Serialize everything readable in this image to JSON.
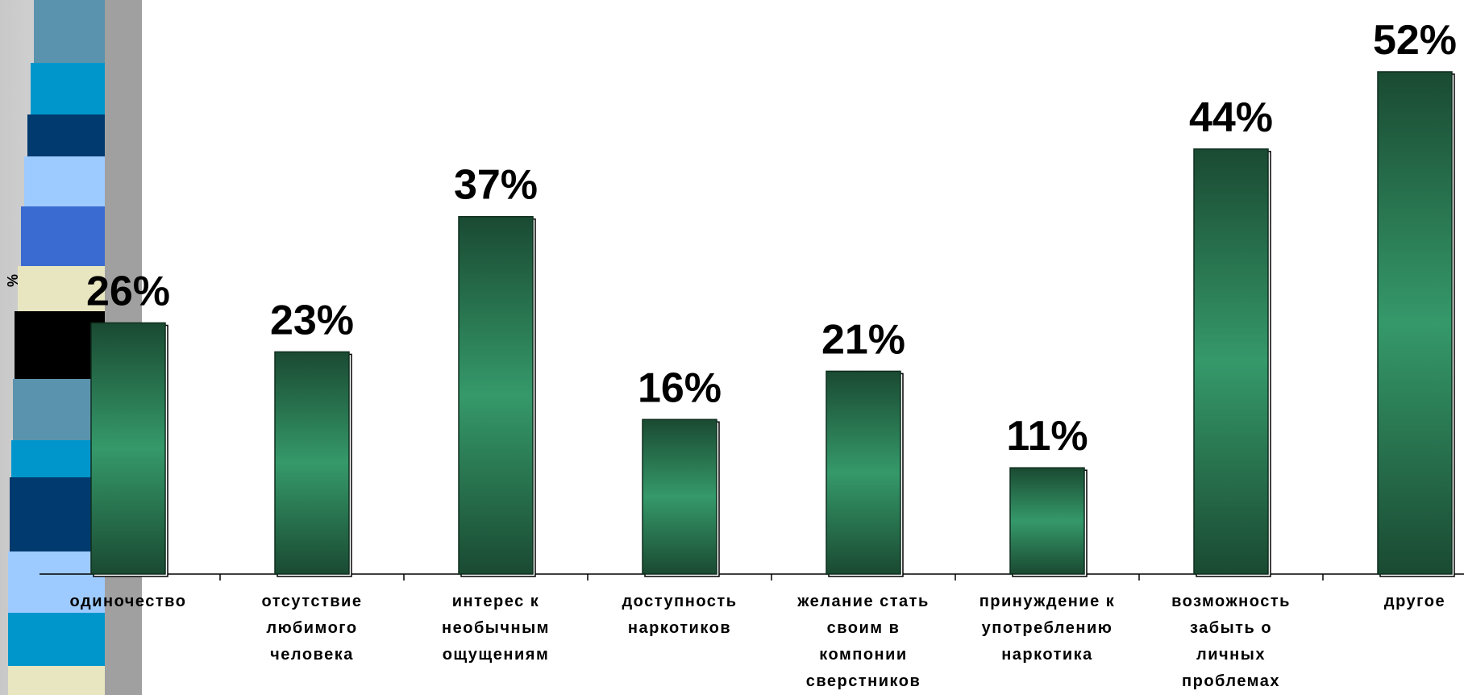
{
  "chart_data": {
    "type": "bar",
    "y_label": "%",
    "categories": [
      "одиночество",
      "отсутствие\nлюбимого\nчеловека",
      "интерес к\nнеобычным\nощущениям",
      "доступность\nнаркотиков",
      "желание стать\nсвоим в\nкомпонии\nсверстников",
      "принуждение к\nупотреблению\nнаркотика",
      "возможность\nзабыть о\nличных\nпроблемах",
      "другое"
    ],
    "values": [
      26,
      23,
      37,
      16,
      21,
      11,
      44,
      52
    ],
    "value_labels": [
      "26%",
      "23%",
      "37%",
      "16%",
      "21%",
      "11%",
      "44%",
      "52%"
    ],
    "color": "#35996a",
    "ylim": [
      0,
      52
    ]
  }
}
